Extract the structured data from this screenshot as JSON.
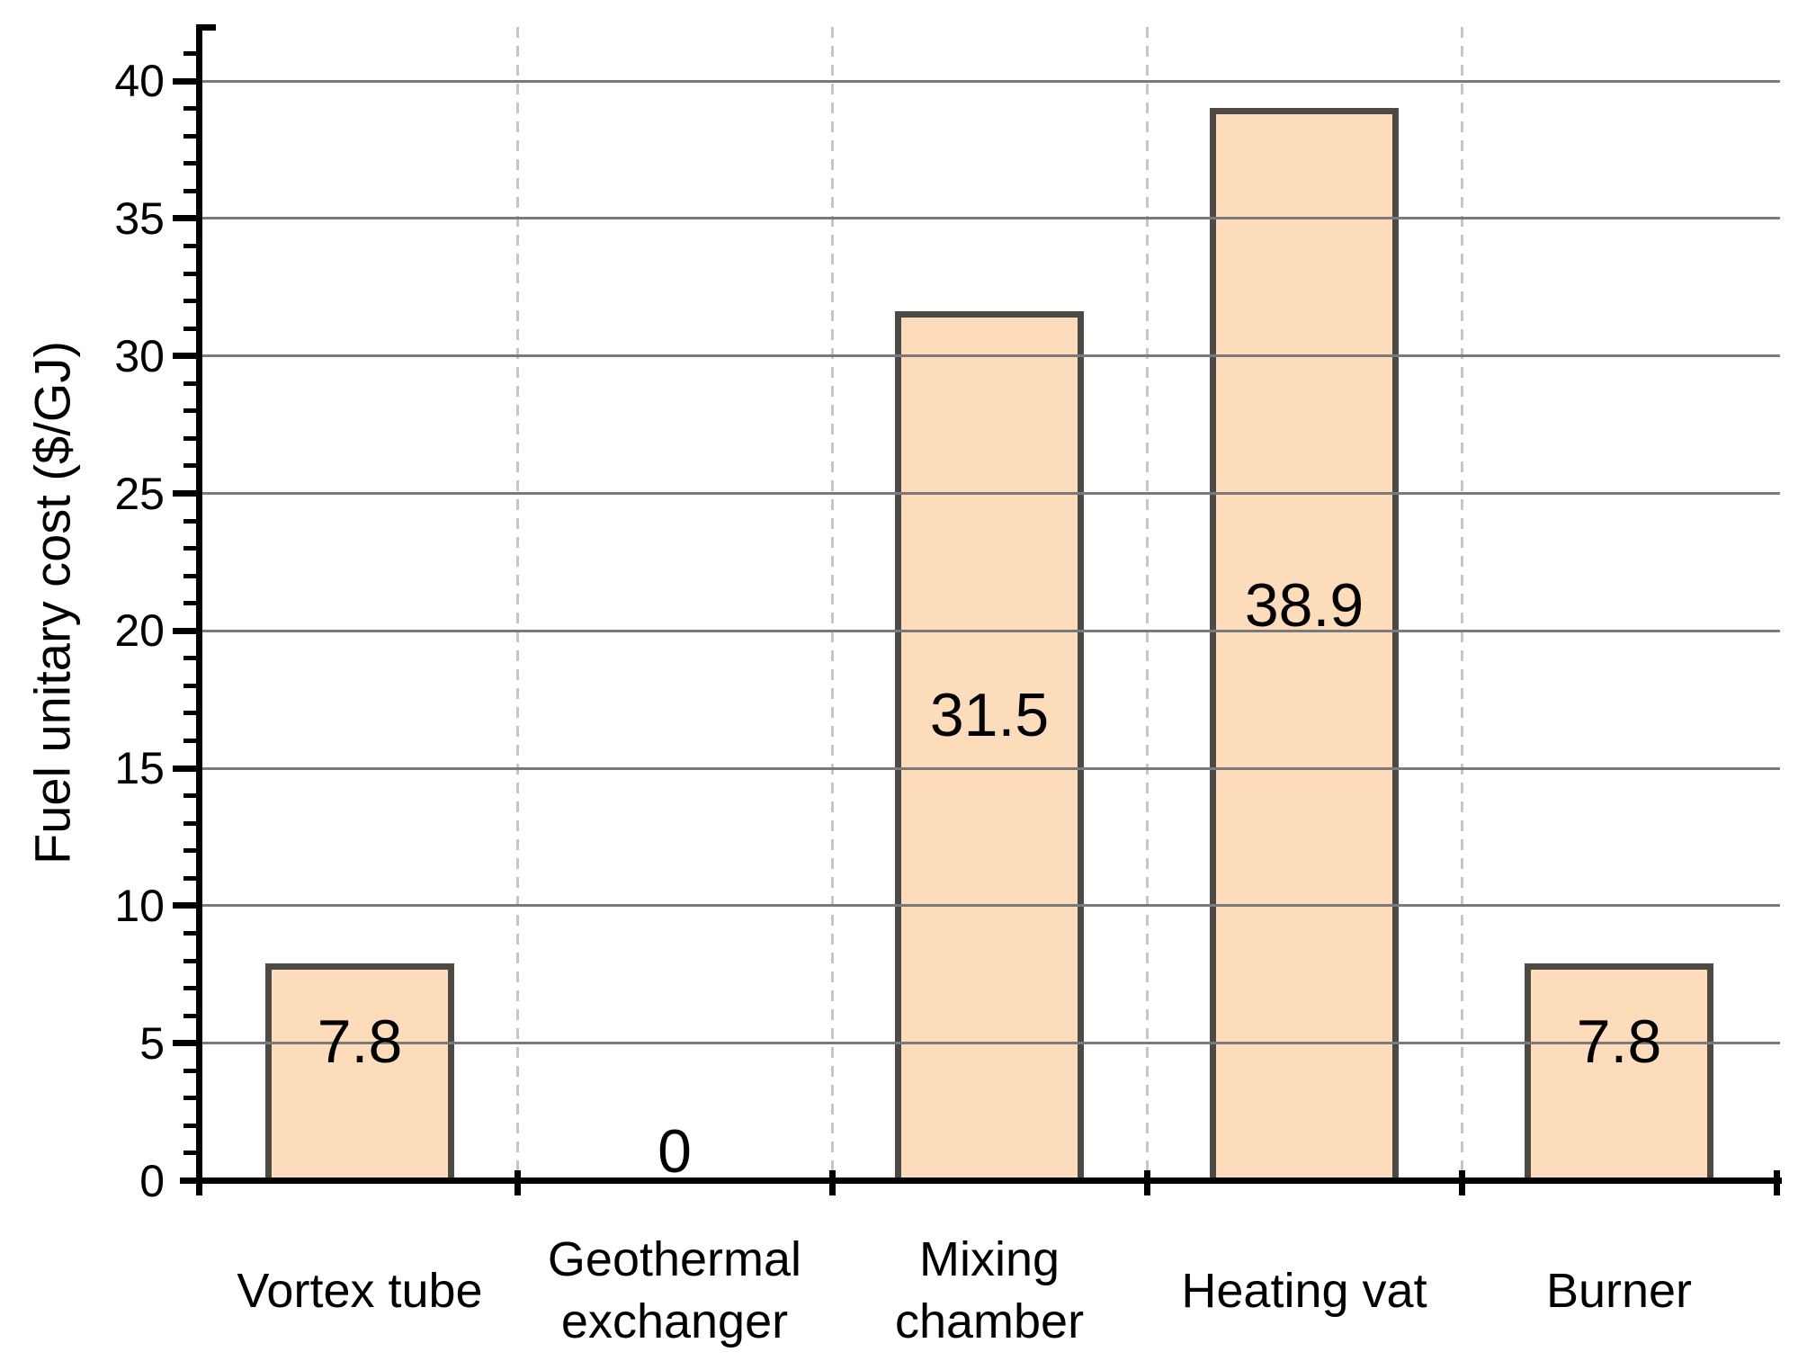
{
  "chart_data": {
    "type": "bar",
    "title": "",
    "categories": [
      "Vortex tube",
      "Geothermal exchanger",
      "Mixing chamber",
      "Heating vat",
      "Burner"
    ],
    "values": [
      7.8,
      0,
      31.5,
      38.9,
      7.8
    ],
    "bar_labels": [
      "7.8",
      "0",
      "31.5",
      "38.9",
      "7.8"
    ],
    "xlabel": "",
    "ylabel": "Fuel unitary cost ($/GJ)",
    "ylim": [
      0,
      42
    ],
    "yticks": [
      0,
      5,
      10,
      15,
      20,
      25,
      30,
      35,
      40
    ],
    "minor_tick_step": 1,
    "legend": "none",
    "grid": {
      "horizontal": "solid gray lines at major ticks, drawn over bars",
      "vertical": "light dashed lines at category boundaries"
    },
    "colors": {
      "bar_fill": "#fcdcba",
      "bar_border": "#4d4a45",
      "grid_major": "#7a7a7a",
      "grid_dashed": "#c6c6c6",
      "axis": "#000000",
      "text": "#000000"
    }
  }
}
